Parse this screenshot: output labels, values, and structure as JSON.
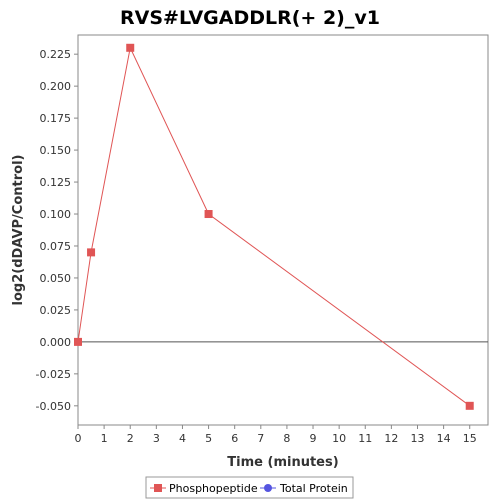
{
  "chart_data": {
    "type": "line",
    "title": "RVS#LVGADDLR(+ 2)_v1",
    "xlabel": "Time (minutes)",
    "ylabel": "log2(dDAVP/Control)",
    "xlim": [
      0,
      15.7
    ],
    "ylim": [
      -0.065,
      0.24
    ],
    "x_ticks": [
      0,
      1,
      2,
      3,
      4,
      5,
      6,
      7,
      8,
      9,
      10,
      11,
      12,
      13,
      14,
      15
    ],
    "y_ticks": [
      -0.05,
      -0.025,
      0.0,
      0.025,
      0.05,
      0.075,
      0.1,
      0.125,
      0.15,
      0.175,
      0.2,
      0.225
    ],
    "y_tick_labels": [
      "-0.050",
      "-0.025",
      "0.000",
      "0.025",
      "0.050",
      "0.075",
      "0.100",
      "0.125",
      "0.150",
      "0.175",
      "0.200",
      "0.225"
    ],
    "zero_line": true,
    "grid": false,
    "legend_position": "bottom",
    "series": [
      {
        "name": "Phosphopeptide",
        "color": "#e05555",
        "marker": "square",
        "x": [
          0,
          0.5,
          2,
          5,
          15
        ],
        "y": [
          0.0,
          0.07,
          0.23,
          0.1,
          -0.05
        ]
      },
      {
        "name": "Total Protein",
        "color": "#5555e0",
        "marker": "circle",
        "x": [],
        "y": []
      }
    ]
  }
}
